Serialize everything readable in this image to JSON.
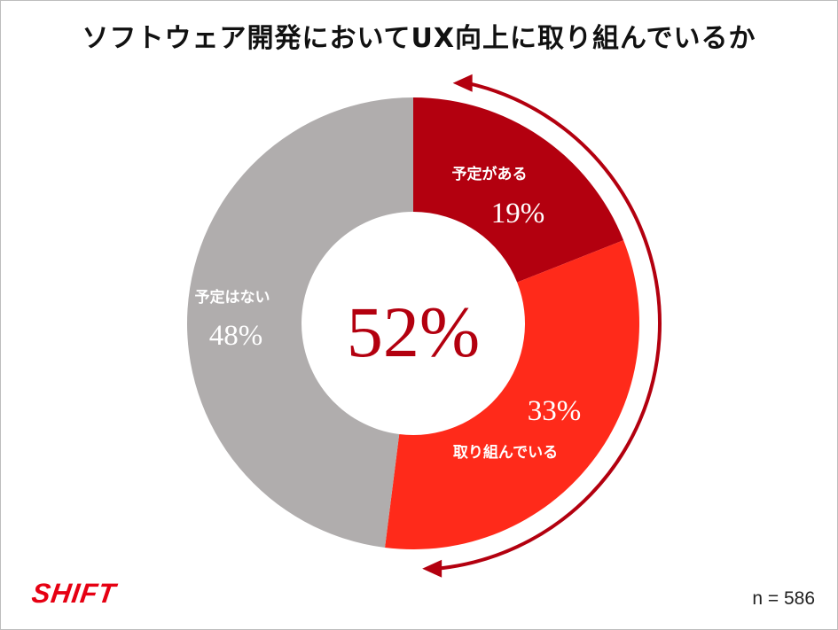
{
  "title": "ソフトウェア開発においてUX向上に取り組んでいるか",
  "chart_data": {
    "type": "pie",
    "categories": [
      "予定がある",
      "取り組んでいる",
      "予定はない"
    ],
    "values": [
      19,
      33,
      48
    ],
    "value_labels": [
      "19%",
      "33%",
      "48%"
    ],
    "colors": [
      "#b3000f",
      "#ff2a1a",
      "#b0adad"
    ],
    "donut": true,
    "center_label": "52%",
    "center_color": "#b3000f",
    "arrow_color": "#b3000f"
  },
  "sample_size": "n = 586",
  "logo": {
    "text": "SHIFT",
    "color": "#e60012"
  }
}
